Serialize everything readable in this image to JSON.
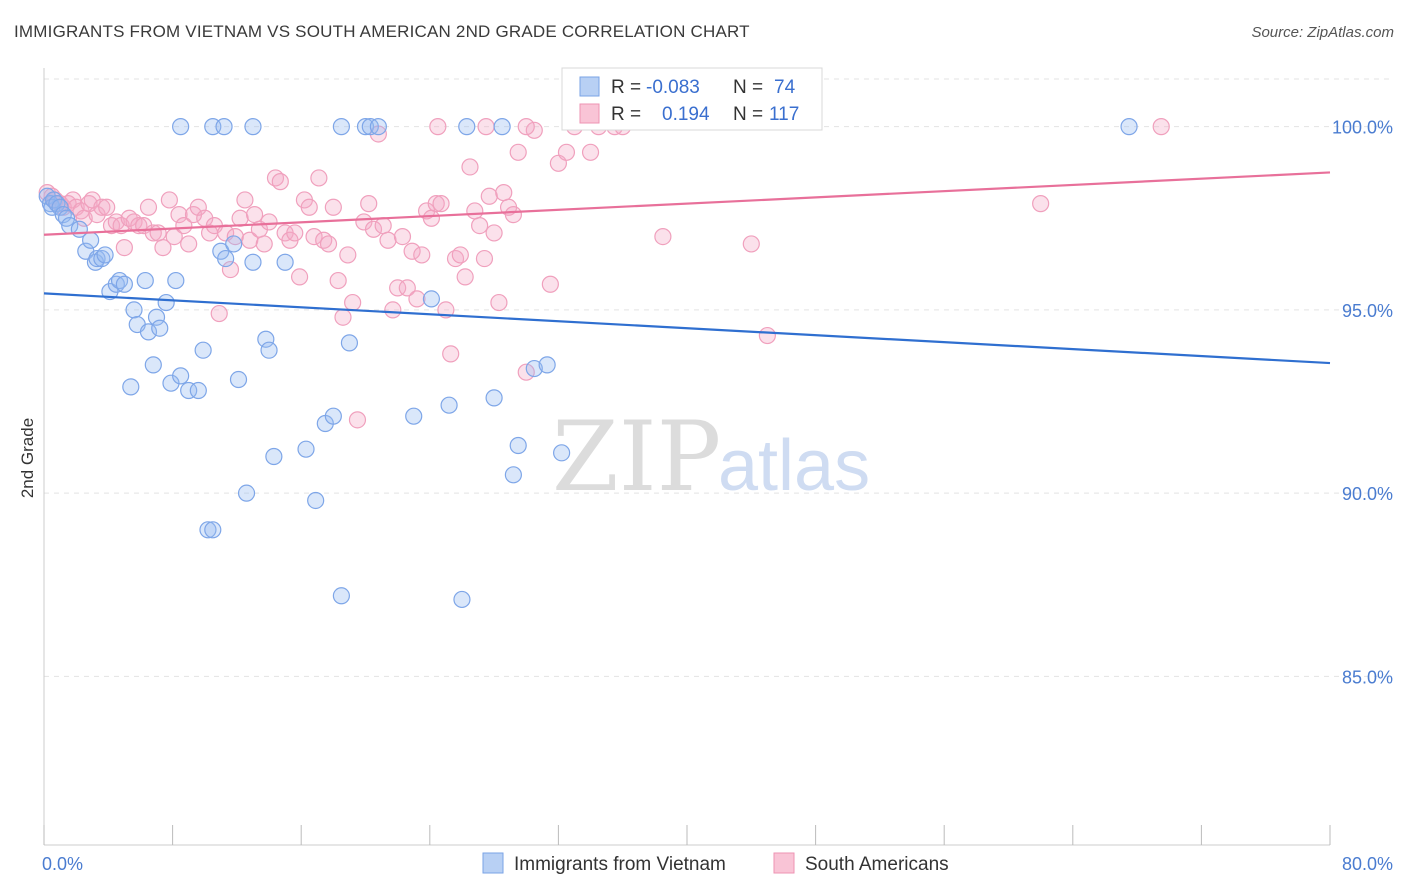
{
  "title": "IMMIGRANTS FROM VIETNAM VS SOUTH AMERICAN 2ND GRADE CORRELATION CHART",
  "source": "Source: ZipAtlas.com",
  "watermark": {
    "zip": "ZIP",
    "atlas": "atlas"
  },
  "legend_top": {
    "rows": [
      {
        "r_label": "R =",
        "r_value": "-0.083",
        "n_label": "N =",
        "n_value": "74"
      },
      {
        "r_label": "R =",
        "r_value": "0.194",
        "n_label": "N =",
        "n_value": "117"
      }
    ]
  },
  "chart_data": {
    "type": "scatter",
    "title": "IMMIGRANTS FROM VIETNAM VS SOUTH AMERICAN 2ND GRADE CORRELATION CHART",
    "xlabel": "",
    "ylabel": "2nd Grade",
    "xlim": [
      0,
      80
    ],
    "ylim": [
      80.4,
      101.6
    ],
    "x_tick_labels": [
      "0.0%",
      "80.0%"
    ],
    "y_ticks": [
      85,
      90,
      95,
      100
    ],
    "y_tick_labels": [
      "85.0%",
      "90.0%",
      "95.0%",
      "100.0%"
    ],
    "grid": true,
    "legend_position": "top-center",
    "colors": {
      "vietnam": "#6c9de6",
      "south_american": "#f08db0",
      "vietnam_line": "#2f6fd0",
      "south_american_line": "#e8709a",
      "axis_text": "#4a7cd0"
    },
    "series": [
      {
        "name": "Immigrants from Vietnam",
        "r": -0.083,
        "n": 74,
        "trend": {
          "x": [
            0,
            80
          ],
          "y": [
            95.45,
            93.55
          ]
        },
        "points": [
          [
            0.2,
            98.1
          ],
          [
            0.4,
            97.9
          ],
          [
            0.5,
            97.8
          ],
          [
            0.6,
            98.0
          ],
          [
            0.8,
            97.9
          ],
          [
            1.0,
            97.8
          ],
          [
            1.2,
            97.6
          ],
          [
            1.4,
            97.5
          ],
          [
            1.6,
            97.3
          ],
          [
            2.2,
            97.2
          ],
          [
            2.6,
            96.6
          ],
          [
            2.9,
            96.9
          ],
          [
            3.2,
            96.3
          ],
          [
            3.3,
            96.4
          ],
          [
            3.6,
            96.4
          ],
          [
            3.8,
            96.5
          ],
          [
            4.1,
            95.5
          ],
          [
            4.5,
            95.7
          ],
          [
            4.7,
            95.8
          ],
          [
            5.0,
            95.7
          ],
          [
            5.6,
            95.0
          ],
          [
            5.8,
            94.6
          ],
          [
            6.3,
            95.8
          ],
          [
            6.5,
            94.4
          ],
          [
            7.0,
            94.8
          ],
          [
            7.2,
            94.5
          ],
          [
            7.6,
            95.2
          ],
          [
            7.9,
            93.0
          ],
          [
            8.2,
            95.8
          ],
          [
            8.5,
            93.2
          ],
          [
            6.8,
            93.5
          ],
          [
            5.4,
            92.9
          ],
          [
            9.0,
            92.8
          ],
          [
            9.6,
            92.8
          ],
          [
            9.9,
            93.9
          ],
          [
            10.2,
            89.0
          ],
          [
            10.5,
            89.0
          ],
          [
            11.0,
            96.6
          ],
          [
            11.3,
            96.4
          ],
          [
            11.8,
            96.8
          ],
          [
            12.1,
            93.1
          ],
          [
            12.6,
            90.0
          ],
          [
            13.0,
            96.3
          ],
          [
            13.8,
            94.2
          ],
          [
            14.0,
            93.9
          ],
          [
            14.3,
            91.0
          ],
          [
            15.0,
            96.3
          ],
          [
            16.3,
            91.2
          ],
          [
            16.9,
            89.8
          ],
          [
            17.5,
            91.9
          ],
          [
            18.0,
            92.1
          ],
          [
            18.5,
            87.2
          ],
          [
            19.0,
            94.1
          ],
          [
            20.0,
            100.0
          ],
          [
            23.0,
            92.1
          ],
          [
            24.1,
            95.3
          ],
          [
            25.2,
            92.4
          ],
          [
            26.0,
            87.1
          ],
          [
            28.0,
            92.6
          ],
          [
            29.5,
            91.3
          ],
          [
            29.2,
            90.5
          ],
          [
            30.5,
            93.4
          ],
          [
            31.3,
            93.5
          ],
          [
            32.2,
            91.1
          ],
          [
            8.5,
            100.0
          ],
          [
            10.5,
            100.0
          ],
          [
            11.2,
            100.0
          ],
          [
            13.0,
            100.0
          ],
          [
            18.5,
            100.0
          ],
          [
            20.3,
            100.0
          ],
          [
            20.8,
            100.0
          ],
          [
            26.3,
            100.0
          ],
          [
            28.5,
            100.0
          ],
          [
            67.5,
            100.0
          ]
        ]
      },
      {
        "name": "South Americans",
        "r": 0.194,
        "n": 117,
        "trend": {
          "x": [
            0,
            80
          ],
          "y": [
            97.05,
            98.75
          ]
        },
        "points": [
          [
            0.2,
            98.2
          ],
          [
            0.5,
            98.1
          ],
          [
            0.7,
            98.0
          ],
          [
            1.0,
            97.9
          ],
          [
            1.2,
            97.8
          ],
          [
            1.5,
            97.9
          ],
          [
            1.8,
            98.0
          ],
          [
            2.0,
            97.8
          ],
          [
            2.3,
            97.7
          ],
          [
            2.5,
            97.5
          ],
          [
            2.8,
            97.9
          ],
          [
            3.0,
            98.0
          ],
          [
            3.3,
            97.6
          ],
          [
            3.6,
            97.8
          ],
          [
            3.9,
            97.8
          ],
          [
            4.2,
            97.3
          ],
          [
            4.5,
            97.4
          ],
          [
            4.8,
            97.3
          ],
          [
            5.0,
            96.7
          ],
          [
            5.3,
            97.5
          ],
          [
            5.6,
            97.4
          ],
          [
            5.9,
            97.3
          ],
          [
            6.2,
            97.3
          ],
          [
            6.5,
            97.8
          ],
          [
            6.8,
            97.1
          ],
          [
            7.1,
            97.1
          ],
          [
            7.4,
            96.7
          ],
          [
            7.8,
            98.0
          ],
          [
            8.1,
            97.0
          ],
          [
            8.4,
            97.6
          ],
          [
            8.7,
            97.3
          ],
          [
            9.0,
            96.8
          ],
          [
            9.3,
            97.6
          ],
          [
            9.6,
            97.8
          ],
          [
            10.0,
            97.5
          ],
          [
            10.3,
            97.1
          ],
          [
            10.6,
            97.3
          ],
          [
            10.9,
            94.9
          ],
          [
            11.3,
            97.1
          ],
          [
            11.6,
            96.1
          ],
          [
            11.9,
            97.0
          ],
          [
            12.2,
            97.5
          ],
          [
            12.5,
            98.0
          ],
          [
            12.8,
            96.9
          ],
          [
            13.1,
            97.6
          ],
          [
            13.4,
            97.2
          ],
          [
            13.7,
            96.8
          ],
          [
            14.0,
            97.4
          ],
          [
            14.4,
            98.6
          ],
          [
            14.7,
            98.5
          ],
          [
            15.0,
            97.1
          ],
          [
            15.3,
            96.9
          ],
          [
            15.6,
            97.1
          ],
          [
            15.9,
            95.9
          ],
          [
            16.2,
            98.0
          ],
          [
            16.5,
            97.8
          ],
          [
            16.8,
            97.0
          ],
          [
            17.1,
            98.6
          ],
          [
            17.4,
            96.9
          ],
          [
            17.7,
            96.8
          ],
          [
            18.0,
            97.8
          ],
          [
            18.3,
            95.8
          ],
          [
            18.6,
            94.8
          ],
          [
            18.9,
            96.5
          ],
          [
            19.2,
            95.2
          ],
          [
            19.5,
            92.0
          ],
          [
            19.9,
            97.4
          ],
          [
            20.2,
            97.9
          ],
          [
            20.5,
            97.2
          ],
          [
            20.8,
            99.8
          ],
          [
            21.1,
            97.3
          ],
          [
            21.4,
            96.9
          ],
          [
            21.7,
            95.0
          ],
          [
            22.0,
            95.6
          ],
          [
            22.3,
            97.0
          ],
          [
            22.6,
            95.6
          ],
          [
            22.9,
            96.6
          ],
          [
            23.2,
            95.3
          ],
          [
            23.5,
            96.5
          ],
          [
            23.8,
            97.7
          ],
          [
            24.1,
            97.5
          ],
          [
            24.4,
            97.9
          ],
          [
            24.7,
            97.9
          ],
          [
            25.0,
            95.0
          ],
          [
            25.3,
            93.8
          ],
          [
            25.6,
            96.4
          ],
          [
            25.9,
            96.5
          ],
          [
            26.2,
            95.9
          ],
          [
            26.5,
            98.9
          ],
          [
            26.8,
            97.7
          ],
          [
            27.1,
            97.3
          ],
          [
            27.4,
            96.4
          ],
          [
            27.7,
            98.1
          ],
          [
            28.0,
            97.1
          ],
          [
            28.3,
            95.2
          ],
          [
            28.6,
            98.2
          ],
          [
            28.9,
            97.8
          ],
          [
            29.2,
            97.6
          ],
          [
            29.5,
            99.3
          ],
          [
            30.0,
            93.3
          ],
          [
            30.5,
            99.9
          ],
          [
            31.5,
            95.7
          ],
          [
            32.0,
            99.0
          ],
          [
            32.5,
            99.3
          ],
          [
            33.0,
            100.0
          ],
          [
            34.0,
            99.3
          ],
          [
            38.5,
            97.0
          ],
          [
            44.0,
            96.8
          ],
          [
            45.0,
            94.3
          ],
          [
            62.0,
            97.9
          ],
          [
            24.5,
            100.0
          ],
          [
            27.5,
            100.0
          ],
          [
            30.0,
            100.0
          ],
          [
            34.5,
            100.0
          ],
          [
            69.5,
            100.0
          ],
          [
            35.5,
            100.0
          ],
          [
            36.0,
            100.0
          ]
        ]
      }
    ]
  },
  "bottom_legend": {
    "items": [
      "Immigrants from Vietnam",
      "South Americans"
    ]
  }
}
